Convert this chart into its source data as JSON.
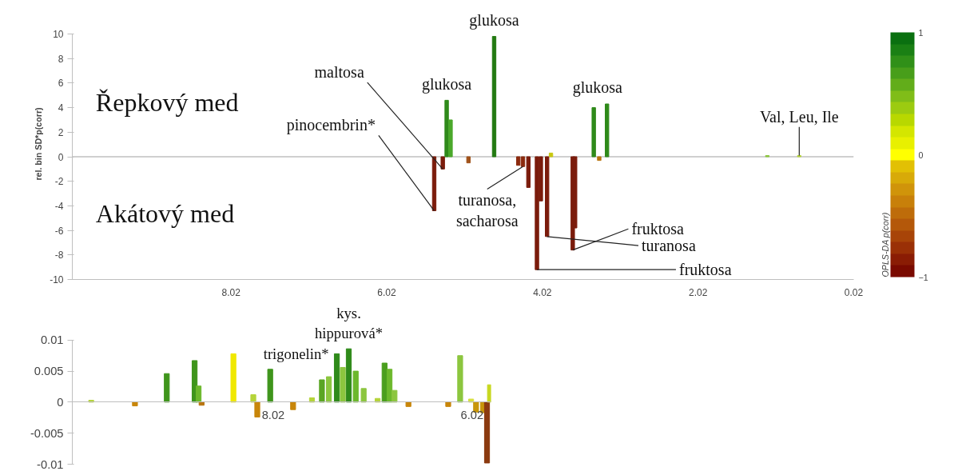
{
  "chart_data": [
    {
      "type": "bar",
      "ylabel": "rel. bin SD*p(corr)",
      "clabel": "OPLS-DA p(corr)",
      "clim": [
        -1,
        1
      ],
      "cticks": [
        -1,
        0,
        1
      ],
      "x": [
        5.41,
        5.3,
        5.25,
        5.2,
        4.97,
        4.64,
        4.33,
        4.27,
        4.2,
        4.09,
        4.04,
        3.96,
        3.91,
        3.63,
        3.6,
        3.36,
        3.29,
        3.19,
        1.13,
        0.72
      ],
      "values": [
        -4.4,
        -1.0,
        4.6,
        3.0,
        -0.5,
        9.8,
        -0.7,
        -0.8,
        -2.5,
        -9.2,
        -3.6,
        -6.5,
        0.3,
        -7.6,
        -5.8,
        4.0,
        -0.3,
        4.3,
        0.1,
        0.1
      ],
      "colors": [
        "#7b1c0c",
        "#7b1c0c",
        "#2f8a1a",
        "#4aa82a",
        "#a0521a",
        "#237a12",
        "#8b2a0e",
        "#8b2a0e",
        "#7b1c0c",
        "#7b1c0c",
        "#7b1c0c",
        "#7b1c0c",
        "#c8c810",
        "#7b1c0c",
        "#7b1c0c",
        "#2f8a1a",
        "#b8740e",
        "#2f8a1a",
        "#8cc63f",
        "#b5d43a"
      ],
      "ref_lines": [
        {
          "axis": "y",
          "value": 0,
          "color": "#a0a0a0"
        }
      ],
      "xlim": [
        10.06,
        0.02
      ],
      "xticks": [
        8.02,
        6.02,
        4.02,
        2.02,
        0.02
      ],
      "ylim": [
        -10,
        10
      ],
      "yticks": [
        -10,
        -8,
        -6,
        -4,
        -2,
        0,
        2,
        4,
        6,
        8,
        10
      ],
      "grid": false,
      "annotations": [
        "Řepkový med",
        "Akátový med",
        {
          "text": "glukosa",
          "x": 5.25,
          "y": 4.6
        },
        {
          "text": "glukosa",
          "x": 4.64,
          "y": 9.8
        },
        {
          "text": "glukosa",
          "x": 3.19,
          "y": 4.3
        },
        {
          "text": "maltosa",
          "x": 5.3,
          "y": -1.0
        },
        {
          "text": "pinocembrin*",
          "x": 5.41,
          "y": -4.4
        },
        {
          "text": "turanosa,\nsacharosa",
          "x": 4.27,
          "y": -0.8
        },
        {
          "text": "fruktosa",
          "x": 4.09,
          "y": -9.2
        },
        {
          "text": "turanosa",
          "x": 3.96,
          "y": -6.5
        },
        {
          "text": "fruktosa",
          "x": 3.63,
          "y": -7.6
        },
        {
          "text": "Val, Leu, Ile",
          "x": 0.72,
          "y": 0.1
        }
      ]
    },
    {
      "type": "bar",
      "x": [
        9.85,
        9.41,
        9.09,
        8.81,
        8.77,
        8.74,
        8.42,
        8.22,
        8.18,
        8.05,
        7.82,
        7.63,
        7.53,
        7.46,
        7.38,
        7.32,
        7.26,
        7.19,
        7.11,
        6.97,
        6.9,
        6.85,
        6.8,
        6.66,
        6.26,
        6.14,
        6.03,
        5.98,
        5.91,
        5.87,
        5.84
      ],
      "values": [
        0.0003,
        -0.0006,
        0.0046,
        0.0067,
        0.0026,
        -0.0005,
        0.0078,
        0.0012,
        -0.0024,
        0.0053,
        -0.0012,
        0.0007,
        0.0036,
        0.0041,
        0.0078,
        0.0056,
        0.0086,
        0.005,
        0.0022,
        0.0006,
        0.0063,
        0.0053,
        0.0019,
        -0.0007,
        -0.0007,
        0.0075,
        0.0005,
        -0.0016,
        -0.0017,
        -0.0098,
        0.0028
      ],
      "colors": [
        "#b5d43a",
        "#c8860a",
        "#3f951c",
        "#3f951c",
        "#6cb82c",
        "#b8740e",
        "#f0e800",
        "#b5d43a",
        "#c8860a",
        "#3f951c",
        "#c8860a",
        "#b5d43a",
        "#5aa524",
        "#8cc63f",
        "#2f8a1a",
        "#8cc63f",
        "#2f8a1a",
        "#6cb82c",
        "#8cc63f",
        "#b5d43a",
        "#4a9e1e",
        "#6cb82c",
        "#8cc63f",
        "#c8860a",
        "#c8860a",
        "#8cc63f",
        "#d8e040",
        "#c8960a",
        "#c8960a",
        "#8b3a0f",
        "#c8d820"
      ],
      "xlim": [
        10.04,
        5.83
      ],
      "xticks": [
        8.02,
        6.02
      ],
      "ylim": [
        -0.01,
        0.01
      ],
      "yticks": [
        -0.01,
        -0.005,
        0,
        0.005,
        0.01
      ],
      "grid": false,
      "annotations": [
        {
          "text": "trigonelin*",
          "x": 8.05,
          "y": 0.0053
        },
        {
          "text": "kys.\nhippurová*",
          "x": 7.26,
          "y": 0.0086
        }
      ]
    }
  ]
}
